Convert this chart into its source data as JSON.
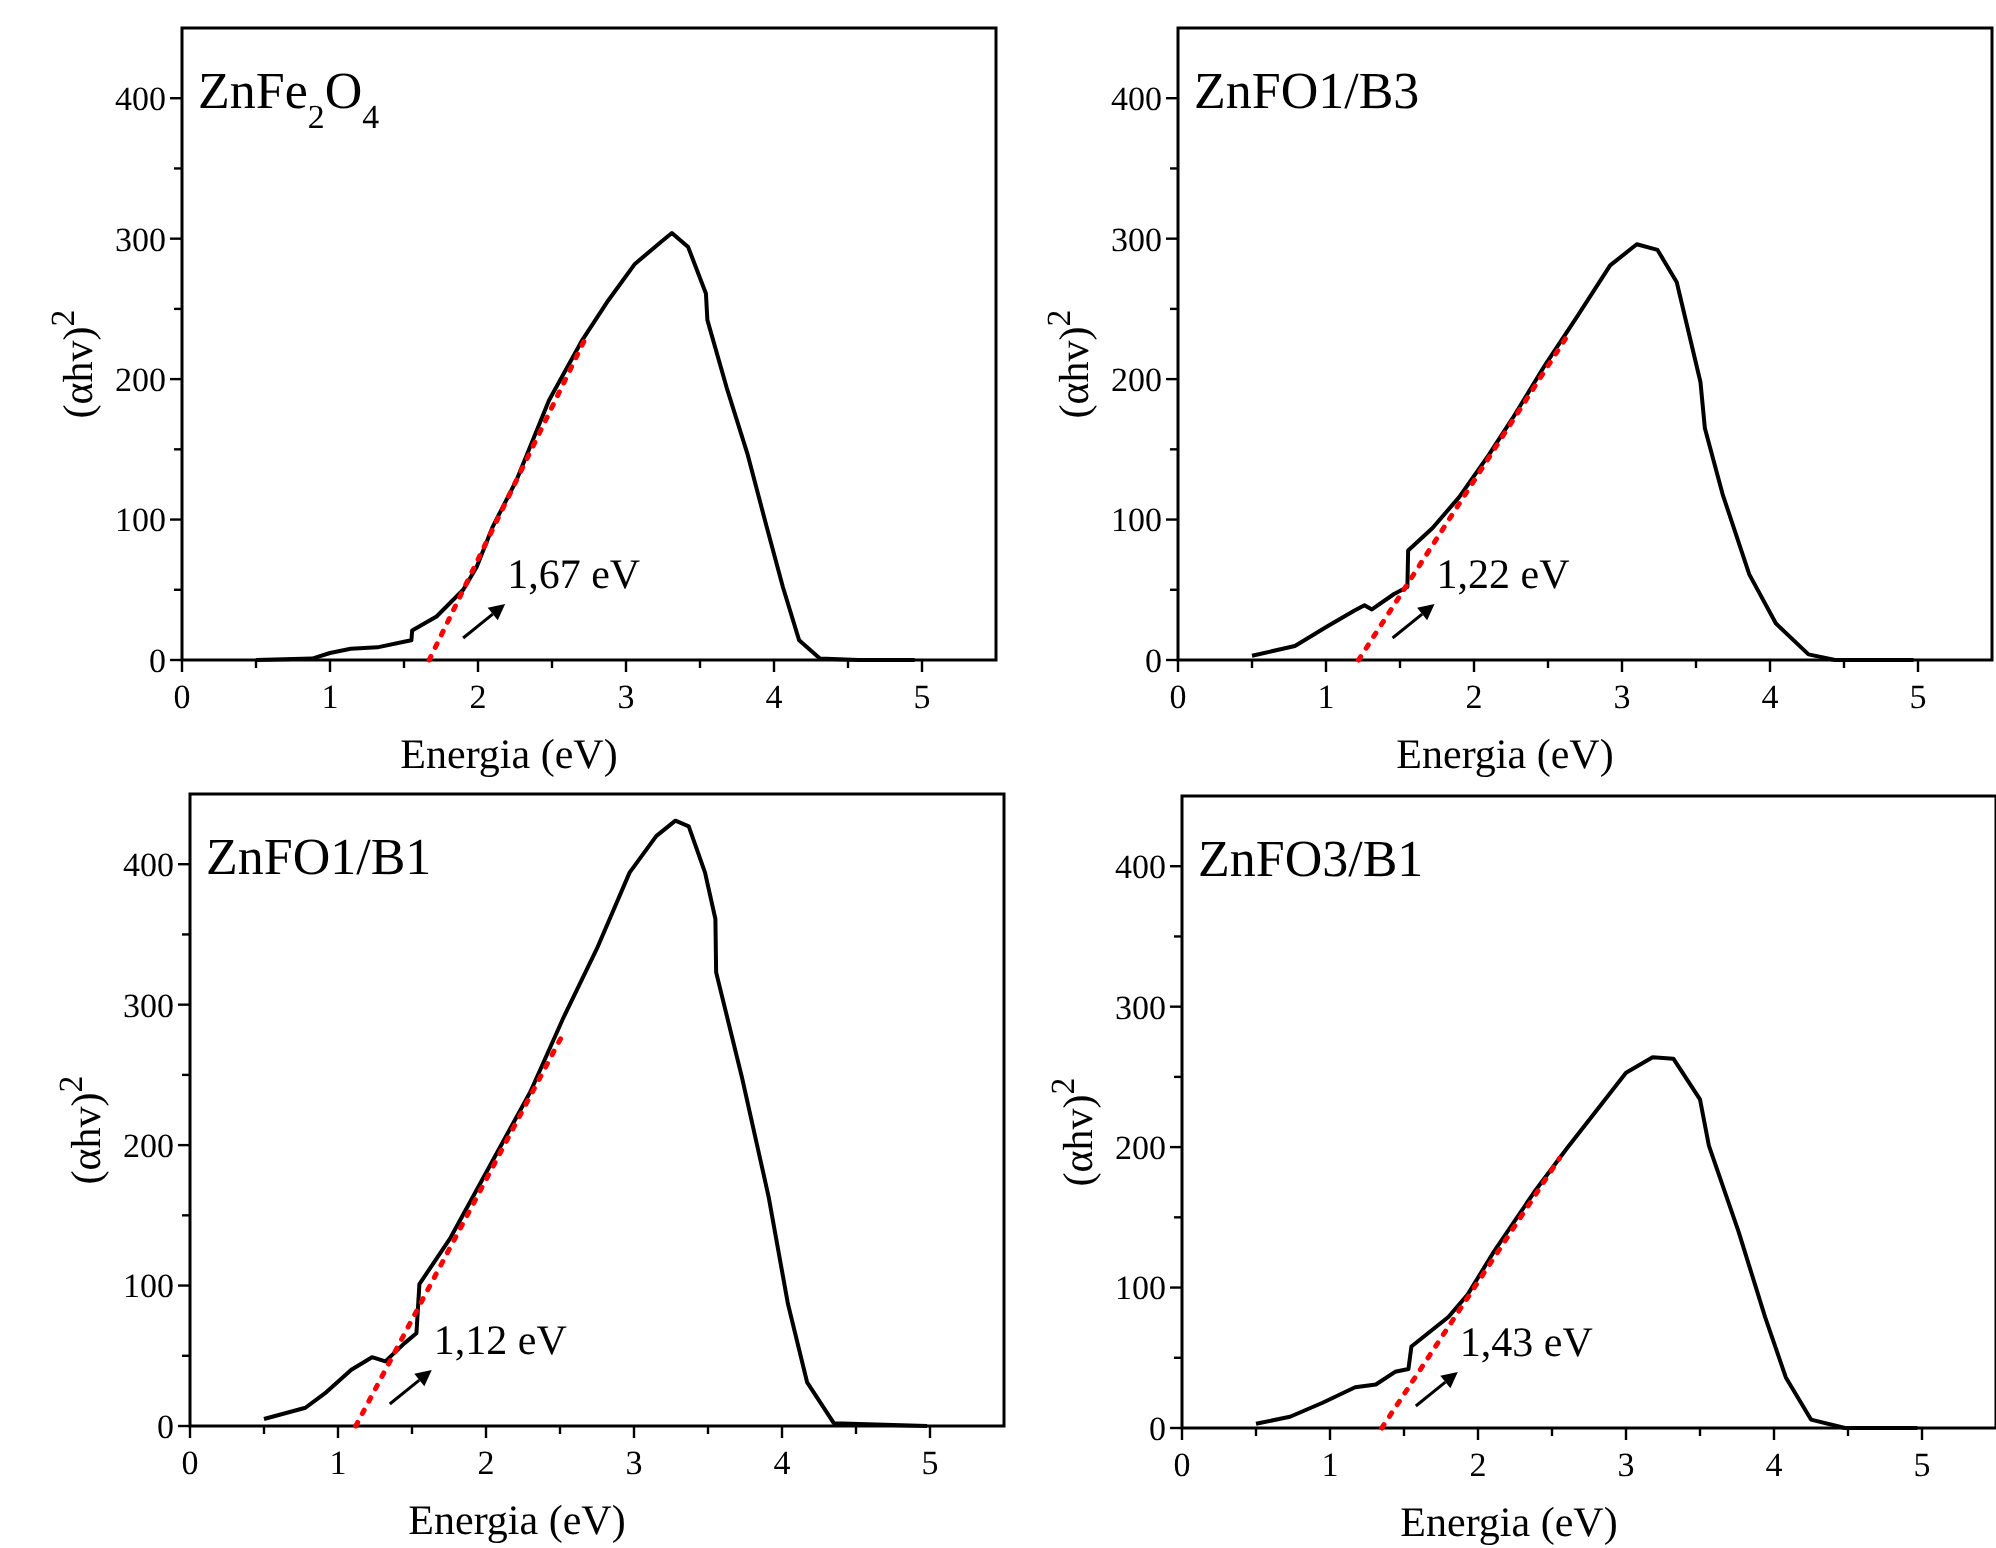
{
  "chart_data": [
    {
      "type": "line",
      "title": "ZnFe$_{2}$O$_{4}$",
      "xlabel": "Energia (eV)",
      "ylabel": "(αhv)$^{2}$",
      "xlim": [
        0,
        5.5
      ],
      "ylim": [
        0,
        450
      ],
      "xticks": [
        0,
        {
          "value": 0.5,
          "label": null
        },
        1,
        {
          "value": 1.5,
          "label": null
        },
        2,
        {
          "value": 2.5,
          "label": null
        },
        3,
        {
          "value": 3.5,
          "label": null
        },
        4,
        {
          "value": 4.5,
          "label": null
        },
        5
      ],
      "yticks": [
        0,
        {
          "value": 50,
          "label": null
        },
        100,
        {
          "value": 150,
          "label": null
        },
        200,
        {
          "value": 250,
          "label": null
        },
        300,
        {
          "value": 350,
          "label": null
        },
        400
      ],
      "series": [
        {
          "color": "#000000",
          "line_style": "solid",
          "x": [
            0.5,
            0.88,
            1.0,
            1.14,
            1.32,
            1.5,
            1.55,
            1.555,
            1.72,
            1.9,
            1.99,
            2.1,
            2.26,
            2.48,
            2.7,
            2.88,
            3.06,
            3.24,
            3.31,
            3.42,
            3.54,
            3.55,
            3.68,
            3.82,
            3.95,
            4.06,
            4.17,
            4.31,
            4.57,
            4.95
          ],
          "values": [
            0,
            1,
            5,
            8,
            9,
            13,
            14,
            21,
            31,
            50,
            66,
            95,
            128,
            185,
            227,
            256,
            282,
            298,
            304,
            294,
            261,
            242,
            194,
            147,
            95,
            52,
            14,
            1,
            0,
            0
          ]
        },
        {
          "color": "#ff0000",
          "line_style": "dotted",
          "x": [
            1.67,
            2.73
          ],
          "values": [
            0,
            230
          ]
        }
      ],
      "annotations": [
        "1,67 eV"
      ]
    },
    {
      "type": "line",
      "title": "ZnFO1/B3",
      "xlabel": "Energia (eV)",
      "ylabel": "(αhv)$^{2}$",
      "xlim": [
        0,
        5.5
      ],
      "ylim": [
        0,
        450
      ],
      "xticks": [
        0,
        {
          "value": 0.5,
          "label": null
        },
        1,
        {
          "value": 1.5,
          "label": null
        },
        2,
        {
          "value": 2.5,
          "label": null
        },
        3,
        {
          "value": 3.5,
          "label": null
        },
        4,
        {
          "value": 4.5,
          "label": null
        },
        5
      ],
      "yticks": [
        0,
        {
          "value": 50,
          "label": null
        },
        100,
        {
          "value": 150,
          "label": null
        },
        200,
        {
          "value": 250,
          "label": null
        },
        300,
        {
          "value": 350,
          "label": null
        },
        400
      ],
      "series": [
        {
          "color": "#000000",
          "line_style": "solid",
          "x": [
            0.5,
            0.79,
            1.01,
            1.19,
            1.26,
            1.31,
            1.46,
            1.55,
            1.555,
            1.72,
            1.9,
            2.1,
            2.26,
            2.48,
            2.7,
            2.92,
            3.1,
            3.24,
            3.37,
            3.53,
            3.56,
            3.68,
            3.86,
            4.04,
            4.26,
            4.44,
            4.97
          ],
          "values": [
            3,
            10,
            24,
            35,
            39,
            36,
            47,
            52,
            78,
            94,
            116,
            146,
            172,
            210,
            245,
            281,
            296,
            292,
            269,
            198,
            165,
            118,
            61,
            26,
            4,
            0,
            0
          ]
        },
        {
          "color": "#ff0000",
          "line_style": "dotted",
          "x": [
            1.22,
            2.65
          ],
          "values": [
            0,
            234
          ]
        }
      ],
      "annotations": [
        "1,22 eV"
      ]
    },
    {
      "type": "line",
      "title": "ZnFO1/B1",
      "xlabel": "Energia (eV)",
      "ylabel": "(αhv)$^{2}$",
      "xlim": [
        0,
        5.5
      ],
      "ylim": [
        0,
        450
      ],
      "xticks": [
        0,
        {
          "value": 0.5,
          "label": null
        },
        1,
        {
          "value": 1.5,
          "label": null
        },
        2,
        {
          "value": 2.5,
          "label": null
        },
        3,
        {
          "value": 3.5,
          "label": null
        },
        4,
        {
          "value": 4.5,
          "label": null
        },
        5
      ],
      "yticks": [
        0,
        {
          "value": 50,
          "label": null
        },
        100,
        {
          "value": 150,
          "label": null
        },
        200,
        {
          "value": 250,
          "label": null
        },
        300,
        {
          "value": 350,
          "label": null
        },
        400
      ],
      "series": [
        {
          "color": "#000000",
          "line_style": "solid",
          "x": [
            0.5,
            0.78,
            0.92,
            1.09,
            1.23,
            1.32,
            1.45,
            1.53,
            1.55,
            1.76,
            2.03,
            2.3,
            2.52,
            2.75,
            2.97,
            3.15,
            3.28,
            3.37,
            3.48,
            3.55,
            3.555,
            3.73,
            3.91,
            4.04,
            4.17,
            4.35,
            4.98
          ],
          "values": [
            5,
            13,
            24,
            40,
            49,
            46,
            59,
            66,
            101,
            134,
            186,
            238,
            290,
            340,
            394,
            420,
            431,
            427,
            394,
            361,
            323,
            248,
            163,
            87,
            31,
            2,
            0
          ]
        },
        {
          "color": "#ff0000",
          "line_style": "dotted",
          "x": [
            1.12,
            2.51
          ],
          "values": [
            0,
            277
          ]
        }
      ],
      "annotations": [
        "1,12 eV"
      ]
    },
    {
      "type": "line",
      "title": "ZnFO3/B1",
      "xlabel": "Energia (eV)",
      "ylabel": "(αhv)$^{2}$",
      "xlim": [
        0,
        5.5
      ],
      "ylim": [
        0,
        450
      ],
      "xticks": [
        0,
        {
          "value": 0.5,
          "label": null
        },
        1,
        {
          "value": 1.5,
          "label": null
        },
        2,
        {
          "value": 2.5,
          "label": null
        },
        3,
        {
          "value": 3.5,
          "label": null
        },
        4,
        {
          "value": 4.5,
          "label": null
        },
        5
      ],
      "yticks": [
        0,
        {
          "value": 50,
          "label": null
        },
        100,
        {
          "value": 150,
          "label": null
        },
        200,
        {
          "value": 250,
          "label": null
        },
        300,
        {
          "value": 350,
          "label": null
        },
        400
      ],
      "series": [
        {
          "color": "#000000",
          "line_style": "solid",
          "x": [
            0.5,
            0.73,
            0.95,
            1.17,
            1.31,
            1.44,
            1.53,
            1.55,
            1.8,
            1.93,
            2.11,
            2.38,
            2.6,
            2.83,
            3.0,
            3.18,
            3.32,
            3.5,
            3.56,
            3.76,
            3.94,
            4.08,
            4.25,
            4.48,
            4.97
          ],
          "values": [
            3,
            8,
            18,
            29,
            31,
            40,
            42,
            58,
            79,
            95,
            126,
            168,
            199,
            230,
            253,
            264,
            263,
            234,
            201,
            140,
            79,
            36,
            6,
            0,
            0
          ]
        },
        {
          "color": "#ff0000",
          "line_style": "dotted",
          "x": [
            1.35,
            2.55
          ],
          "values": [
            0,
            192
          ]
        }
      ],
      "annotations": [
        "1,43 eV"
      ]
    }
  ]
}
